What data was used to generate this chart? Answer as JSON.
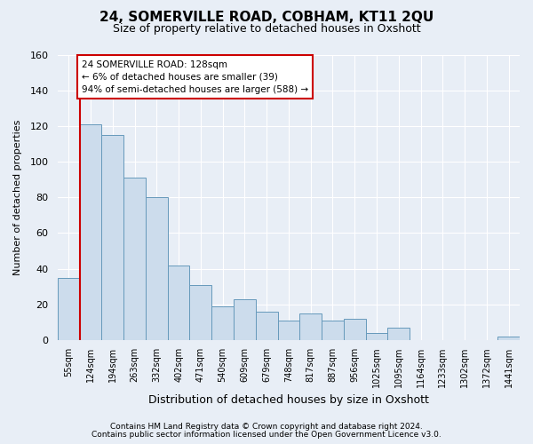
{
  "title": "24, SOMERVILLE ROAD, COBHAM, KT11 2QU",
  "subtitle": "Size of property relative to detached houses in Oxshott",
  "xlabel": "Distribution of detached houses by size in Oxshott",
  "ylabel": "Number of detached properties",
  "categories": [
    "55sqm",
    "124sqm",
    "194sqm",
    "263sqm",
    "332sqm",
    "402sqm",
    "471sqm",
    "540sqm",
    "609sqm",
    "679sqm",
    "748sqm",
    "817sqm",
    "887sqm",
    "956sqm",
    "1025sqm",
    "1095sqm",
    "1164sqm",
    "1233sqm",
    "1302sqm",
    "1372sqm",
    "1441sqm"
  ],
  "values": [
    35,
    121,
    115,
    91,
    80,
    42,
    31,
    19,
    23,
    16,
    11,
    15,
    11,
    12,
    4,
    7,
    0,
    0,
    0,
    0,
    2
  ],
  "bar_color": "#ccdcec",
  "bar_edge_color": "#6699bb",
  "ylim": [
    0,
    160
  ],
  "yticks": [
    0,
    20,
    40,
    60,
    80,
    100,
    120,
    140,
    160
  ],
  "property_line_color": "#cc0000",
  "annotation_line1": "24 SOMERVILLE ROAD: 128sqm",
  "annotation_line2": "← 6% of detached houses are smaller (39)",
  "annotation_line3": "94% of semi-detached houses are larger (588) →",
  "annotation_box_facecolor": "#ffffff",
  "annotation_box_edgecolor": "#cc0000",
  "background_color": "#e8eef6",
  "grid_color": "#ffffff",
  "footer1": "Contains HM Land Registry data © Crown copyright and database right 2024.",
  "footer2": "Contains public sector information licensed under the Open Government Licence v3.0."
}
